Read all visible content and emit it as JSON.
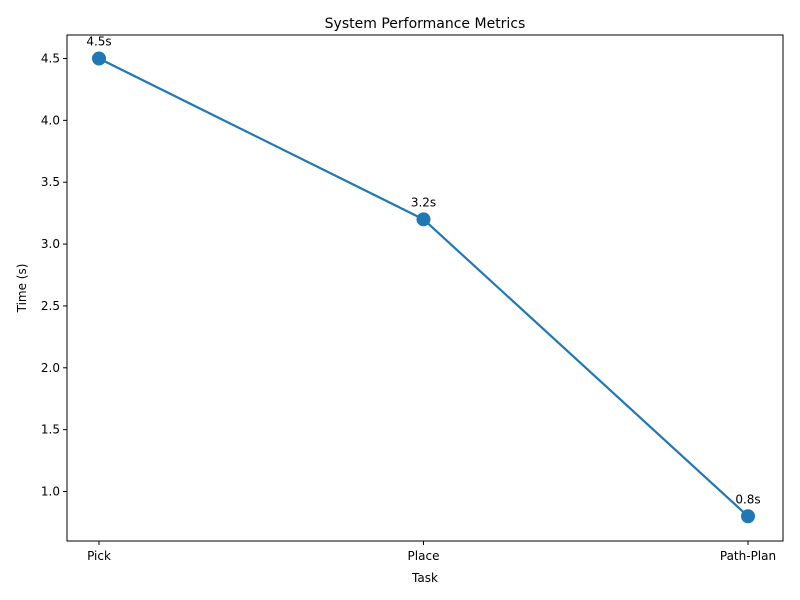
{
  "chart_data": {
    "type": "line",
    "title": "System Performance Metrics",
    "xlabel": "Task",
    "ylabel": "Time (s)",
    "categories": [
      "Pick",
      "Place",
      "Path-Plan"
    ],
    "series": [
      {
        "values": [
          4.5,
          3.2,
          0.8
        ],
        "data_labels": [
          "4.5s",
          "3.2s",
          "0.8s"
        ],
        "color": "#1f77b4",
        "marker": "circle"
      }
    ],
    "ylim": [
      0.6,
      4.69
    ],
    "yticks": [
      1.0,
      1.5,
      2.0,
      2.5,
      3.0,
      3.5,
      4.0,
      4.5
    ],
    "ytick_labels": [
      "1.0",
      "1.5",
      "2.0",
      "2.5",
      "3.0",
      "3.5",
      "4.0",
      "4.5"
    ],
    "grid": false,
    "legend": "none"
  }
}
